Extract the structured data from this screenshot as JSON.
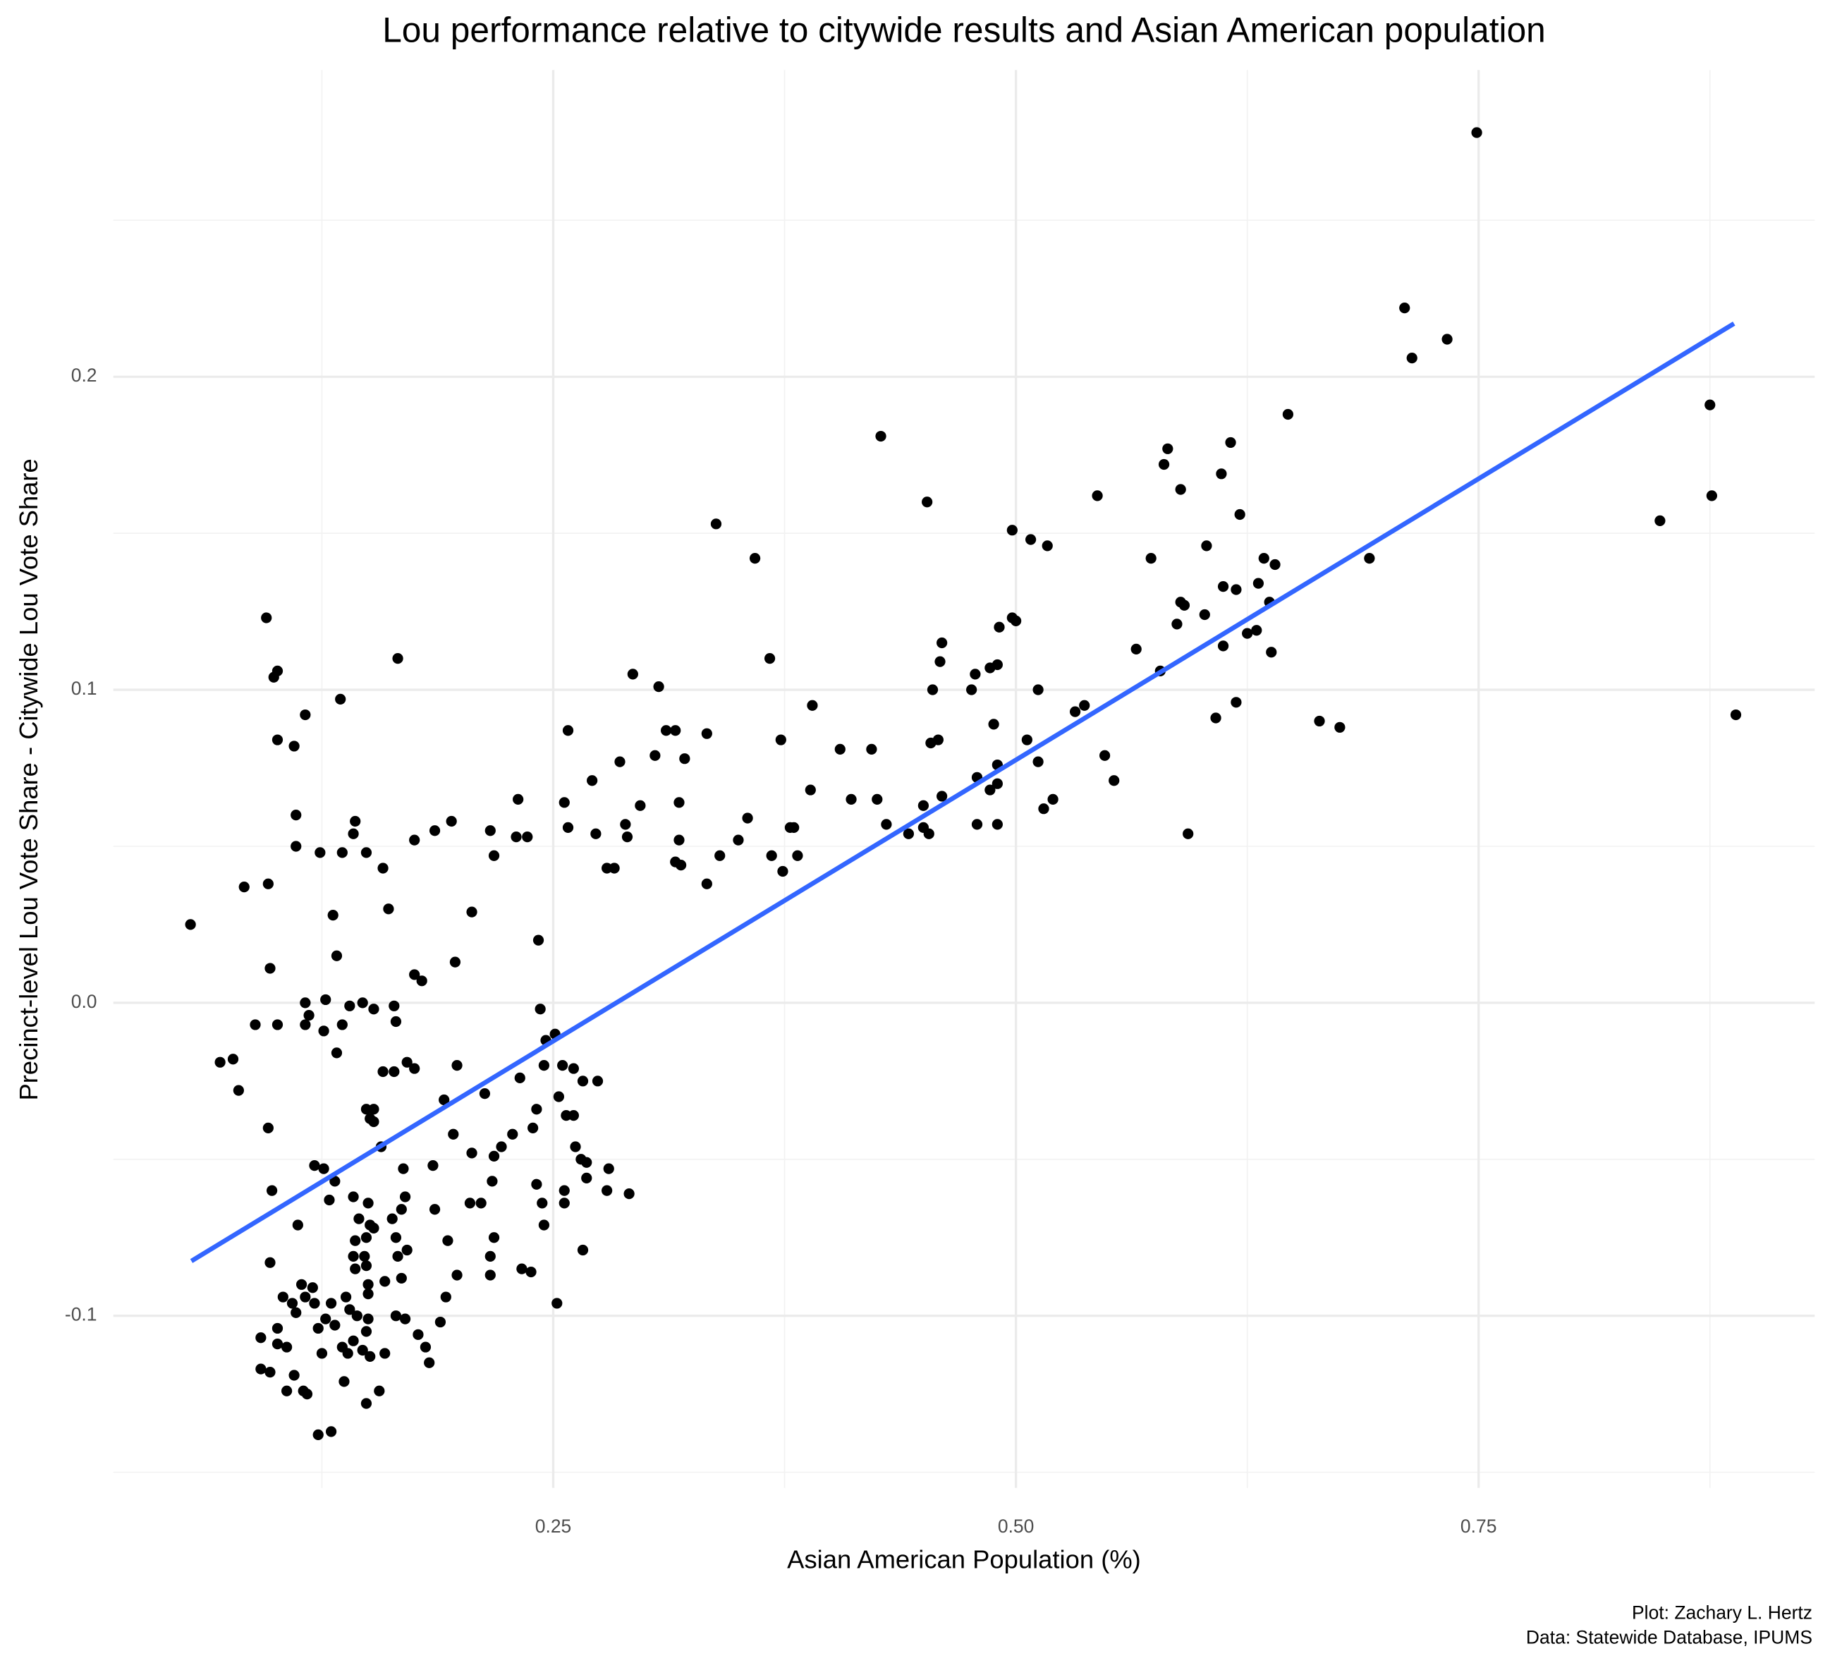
{
  "chart_data": {
    "type": "scatter",
    "title": "Lou performance relative to citywide results and Asian American population",
    "x_label": "Asian American Population (%)",
    "y_label": "Precinct-level Lou Vote Share - Citywide Lou Vote Share",
    "caption": [
      "Plot: Zachary L. Hertz",
      "Data: Statewide Database, IPUMS"
    ],
    "xlim": [
      0.0123,
      0.9316
    ],
    "ylim": [
      -0.155,
      0.298
    ],
    "xticks": [
      {
        "value": 0.25,
        "label": "0.25"
      },
      {
        "value": 0.5,
        "label": "0.50"
      },
      {
        "value": 0.75,
        "label": "0.75"
      }
    ],
    "yticks": [
      -0.1,
      {
        "value": 0,
        "label": "0.0"
      },
      0.1,
      0.2
    ],
    "grid": true,
    "color": "#000000",
    "x": [
      0.749,
      0.71,
      0.714,
      0.733,
      0.875,
      0.876,
      0.848,
      0.889,
      0.691,
      0.664,
      0.675,
      0.647,
      0.616,
      0.582,
      0.58,
      0.611,
      0.589,
      0.544,
      0.621,
      0.603,
      0.573,
      0.634,
      0.64,
      0.631,
      0.612,
      0.619,
      0.589,
      0.637,
      0.591,
      0.602,
      0.587,
      0.63,
      0.625,
      0.612,
      0.638,
      0.565,
      0.578,
      0.619,
      0.608,
      0.593,
      0.553,
      0.548,
      0.537,
      0.532,
      0.498,
      0.508,
      0.517,
      0.498,
      0.5,
      0.491,
      0.49,
      0.486,
      0.46,
      0.459,
      0.455,
      0.478,
      0.476,
      0.512,
      0.488,
      0.506,
      0.458,
      0.454,
      0.512,
      0.49,
      0.479,
      0.49,
      0.515,
      0.52,
      0.486,
      0.46,
      0.45,
      0.479,
      0.49,
      0.43,
      0.453,
      0.45,
      0.442,
      0.411,
      0.425,
      0.422,
      0.405,
      0.427,
      0.452,
      0.338,
      0.359,
      0.367,
      0.39,
      0.373,
      0.389,
      0.378,
      0.38,
      0.368,
      0.382,
      0.374,
      0.355,
      0.35,
      0.34,
      0.333,
      0.316,
      0.311,
      0.321,
      0.305,
      0.307,
      0.293,
      0.286,
      0.297,
      0.318,
      0.289,
      0.29,
      0.318,
      0.316,
      0.319,
      0.333,
      0.258,
      0.256,
      0.258,
      0.271,
      0.273,
      0.279,
      0.283,
      0.231,
      0.23,
      0.236,
      0.216,
      0.218,
      0.195,
      0.186,
      0.175,
      0.166,
      0.135,
      0.116,
      0.095,
      0.101,
      0.099,
      0.101,
      0.11,
      0.111,
      0.111,
      0.096,
      0.083,
      0.054,
      0.124,
      0.136,
      0.143,
      0.142,
      0.149,
      0.158,
      0.161,
      0.131,
      0.133,
      0.097,
      0.206,
      0.197,
      0.175,
      0.179,
      0.116,
      0.127,
      0.147,
      0.14,
      0.153,
      0.164,
      0.165,
      0.116,
      0.118,
      0.101,
      0.089,
      0.136,
      0.126,
      0.133,
      0.07,
      0.077,
      0.08,
      0.096,
      0.171,
      0.175,
      0.158,
      0.164,
      0.149,
      0.153,
      0.151,
      0.153,
      0.157,
      0.191,
      0.198,
      0.213,
      0.196,
      0.206,
      0.218,
      0.222,
      0.228,
      0.232,
      0.239,
      0.241,
      0.243,
      0.242,
      0.246,
      0.251,
      0.245,
      0.255,
      0.261,
      0.253,
      0.257,
      0.261,
      0.266,
      0.274,
      0.262,
      0.265,
      0.268,
      0.268,
      0.256,
      0.256,
      0.244,
      0.241,
      0.245,
      0.266,
      0.28,
      0.279,
      0.291,
      0.252,
      0.233,
      0.238,
      0.216,
      0.218,
      0.216,
      0.217,
      0.211,
      0.205,
      0.198,
      0.193,
      0.192,
      0.189,
      0.186,
      0.185,
      0.183,
      0.181,
      0.177,
      0.17,
      0.165,
      0.169,
      0.17,
      0.168,
      0.171,
      0.166,
      0.168,
      0.165,
      0.163,
      0.159,
      0.159,
      0.156,
      0.149,
      0.153,
      0.15,
      0.151,
      0.149,
      0.148,
      0.145,
      0.149,
      0.15,
      0.15,
      0.15,
      0.149,
      0.147,
      0.151,
      0.144,
      0.143,
      0.142,
      0.142,
      0.143,
      0.142,
      0.138,
      0.14,
      0.136,
      0.137,
      0.139,
      0.13,
      0.127,
      0.132,
      0.129,
      0.132,
      0.126,
      0.13,
      0.123,
      0.121,
      0.12,
      0.121,
      0.123,
      0.125,
      0.117,
      0.115,
      0.11,
      0.106,
      0.112,
      0.114,
      0.116,
      0.109,
      0.111,
      0.104,
      0.106,
      0.101,
      0.101,
      0.097,
      0.097,
      0.098,
      0.092,
      0.092
    ],
    "y": [
      0.278,
      0.222,
      0.206,
      0.212,
      0.191,
      0.162,
      0.154,
      0.092,
      0.142,
      0.09,
      0.088,
      0.188,
      0.179,
      0.177,
      0.172,
      0.169,
      0.164,
      0.162,
      0.156,
      0.146,
      0.142,
      0.142,
      0.14,
      0.134,
      0.133,
      0.132,
      0.128,
      0.128,
      0.127,
      0.124,
      0.121,
      0.119,
      0.118,
      0.114,
      0.112,
      0.113,
      0.106,
      0.096,
      0.091,
      0.054,
      0.071,
      0.079,
      0.095,
      0.093,
      0.151,
      0.148,
      0.146,
      0.123,
      0.122,
      0.12,
      0.108,
      0.107,
      0.115,
      0.109,
      0.1,
      0.105,
      0.1,
      0.1,
      0.089,
      0.084,
      0.084,
      0.083,
      0.077,
      0.076,
      0.072,
      0.07,
      0.062,
      0.065,
      0.068,
      0.066,
      0.063,
      0.057,
      0.057,
      0.057,
      0.054,
      0.056,
      0.054,
      0.065,
      0.065,
      0.081,
      0.081,
      0.181,
      0.16,
      0.153,
      0.142,
      0.11,
      0.095,
      0.084,
      0.068,
      0.056,
      0.056,
      0.047,
      0.047,
      0.042,
      0.059,
      0.052,
      0.047,
      0.086,
      0.087,
      0.087,
      0.078,
      0.079,
      0.101,
      0.105,
      0.077,
      0.063,
      0.064,
      0.057,
      0.053,
      0.052,
      0.045,
      0.044,
      0.038,
      0.087,
      0.064,
      0.056,
      0.071,
      0.054,
      0.043,
      0.043,
      0.065,
      0.053,
      0.053,
      0.055,
      0.047,
      0.058,
      0.055,
      0.052,
      0.11,
      0.097,
      0.092,
      0.123,
      0.106,
      0.104,
      0.084,
      0.082,
      0.06,
      0.05,
      0.038,
      0.037,
      0.025,
      0.048,
      0.048,
      0.058,
      0.054,
      0.048,
      0.043,
      0.03,
      0.028,
      0.015,
      0.011,
      0.029,
      0.013,
      0.009,
      0.007,
      0.0,
      0.001,
      0.0,
      -0.001,
      -0.002,
      -0.001,
      -0.006,
      -0.007,
      -0.004,
      -0.007,
      -0.007,
      -0.007,
      -0.009,
      -0.016,
      -0.019,
      -0.018,
      -0.028,
      -0.04,
      -0.019,
      -0.021,
      -0.022,
      -0.022,
      -0.034,
      -0.034,
      -0.037,
      -0.038,
      -0.046,
      -0.031,
      -0.02,
      -0.029,
      -0.042,
      -0.048,
      -0.049,
      -0.046,
      -0.042,
      -0.024,
      -0.04,
      -0.034,
      -0.002,
      0.02,
      -0.012,
      -0.01,
      -0.02,
      -0.02,
      -0.021,
      -0.03,
      -0.036,
      -0.036,
      -0.025,
      -0.025,
      -0.046,
      -0.05,
      -0.051,
      -0.056,
      -0.06,
      -0.064,
      -0.064,
      -0.058,
      -0.071,
      -0.079,
      -0.053,
      -0.06,
      -0.061,
      -0.096,
      -0.085,
      -0.086,
      -0.087,
      -0.075,
      -0.081,
      -0.057,
      -0.064,
      -0.064,
      -0.087,
      -0.076,
      -0.094,
      -0.102,
      -0.066,
      -0.052,
      -0.115,
      -0.11,
      -0.106,
      -0.101,
      -0.1,
      -0.053,
      -0.062,
      -0.066,
      -0.079,
      -0.081,
      -0.088,
      -0.075,
      -0.069,
      -0.089,
      -0.112,
      -0.124,
      -0.128,
      -0.072,
      -0.064,
      -0.071,
      -0.075,
      -0.081,
      -0.069,
      -0.084,
      -0.09,
      -0.093,
      -0.101,
      -0.105,
      -0.111,
      -0.113,
      -0.1,
      -0.085,
      -0.108,
      -0.062,
      -0.076,
      -0.081,
      -0.094,
      -0.098,
      -0.11,
      -0.121,
      -0.112,
      -0.096,
      -0.101,
      -0.103,
      -0.063,
      -0.057,
      -0.053,
      -0.137,
      -0.138,
      -0.052,
      -0.091,
      -0.096,
      -0.104,
      -0.112,
      -0.125,
      -0.124,
      -0.119,
      -0.124,
      -0.071,
      -0.09,
      -0.094,
      -0.096,
      -0.099,
      -0.094,
      -0.11,
      -0.104,
      -0.109,
      -0.118,
      -0.083,
      -0.06,
      -0.107,
      -0.117
    ],
    "trendline": {
      "x": [
        0.0545,
        0.888
      ],
      "y": [
        -0.0825,
        0.217
      ],
      "color": "#3366ff"
    }
  }
}
